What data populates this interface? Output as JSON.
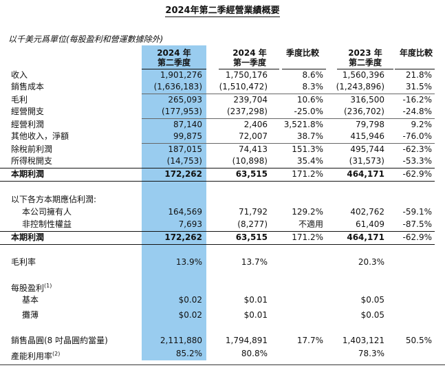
{
  "title": "2024年第二季經營業績概要",
  "subtitle": "以千美元爲單位(每股盈利和營運數據除外)",
  "headers": {
    "q2_2024": [
      "2024 年",
      "第二季度"
    ],
    "q1_2024": [
      "2024 年",
      "第一季度"
    ],
    "qoq": "季度比較",
    "q2_2023": [
      "2023 年",
      "第二季度"
    ],
    "yoy": "年度比較"
  },
  "rows": [
    {
      "label": "收入",
      "v1": "1,901,276",
      "v2": "1,750,176",
      "v3": "8.6%",
      "v4": "1,560,396",
      "v5": "21.8%"
    },
    {
      "label": "銷售成本",
      "v1": "(1,636,183)",
      "v2": "(1,510,472)",
      "v3": "8.3%",
      "v4": "(1,243,896)",
      "v5": "31.5%"
    },
    {
      "label": "毛利",
      "v1": "265,093",
      "v2": "239,704",
      "v3": "10.6%",
      "v4": "316,500",
      "v5": "-16.2%"
    },
    {
      "label": "經營開支",
      "v1": "(177,953)",
      "v2": "(237,298)",
      "v3": "-25.0%",
      "v4": "(236,702)",
      "v5": "-24.8%"
    },
    {
      "label": "經營利潤",
      "v1": "87,140",
      "v2": "2,406",
      "v3": "3,521.8%",
      "v4": "79,798",
      "v5": "9.2%"
    },
    {
      "label": "其他收入，淨額",
      "v1": "99,875",
      "v2": "72,007",
      "v3": "38.7%",
      "v4": "415,946",
      "v5": "-76.0%"
    },
    {
      "label": "除稅前利潤",
      "v1": "187,015",
      "v2": "74,413",
      "v3": "151.3%",
      "v4": "495,744",
      "v5": "-62.3%"
    },
    {
      "label": "所得稅開支",
      "v1": "(14,753)",
      "v2": "(10,898)",
      "v3": "35.4%",
      "v4": "(31,573)",
      "v5": "-53.3%"
    },
    {
      "label": "本期利潤",
      "v1": "172,262",
      "v2": "63,515",
      "v3": "171.2%",
      "v4": "464,171",
      "v5": "-62.9%"
    }
  ],
  "attrib": {
    "heading": "以下各方本期應佔利潤:",
    "rows": [
      {
        "label": "本公司擁有人",
        "v1": "164,569",
        "v2": "71,792",
        "v3": "129.2%",
        "v4": "402,762",
        "v5": "-59.1%"
      },
      {
        "label": "非控制性權益",
        "v1": "7,693",
        "v2": "(8,277)",
        "v3": "不適用",
        "v4": "61,409",
        "v5": "-87.5%"
      },
      {
        "label": "本期利潤",
        "v1": "172,262",
        "v2": "63,515",
        "v3": "171.2%",
        "v4": "464,171",
        "v5": "-62.9%"
      }
    ]
  },
  "gross_margin": {
    "label": "毛利率",
    "v1": "13.9%",
    "v2": "13.7%",
    "v4": "20.3%"
  },
  "eps": {
    "heading": "每股盈利",
    "note": "(1)",
    "basic": {
      "label": "基本",
      "v1": "$0.02",
      "v2": "$0.01",
      "v4": "$0.05"
    },
    "diluted": {
      "label": "攤薄",
      "v1": "$0.02",
      "v2": "$0.01",
      "v4": "$0.05"
    }
  },
  "wafers": {
    "label": "銷售晶圓(8 吋晶圓約當量)",
    "v1": "2,111,880",
    "v2": "1,794,891",
    "v3": "17.7%",
    "v4": "1,403,121",
    "v5": "50.5%"
  },
  "utilization": {
    "label": "產能利用率",
    "note": "(2)",
    "v1": "85.2%",
    "v2": "80.8%",
    "v4": "78.3%"
  },
  "colors": {
    "highlight": "#99ccef",
    "text": "#111111"
  }
}
